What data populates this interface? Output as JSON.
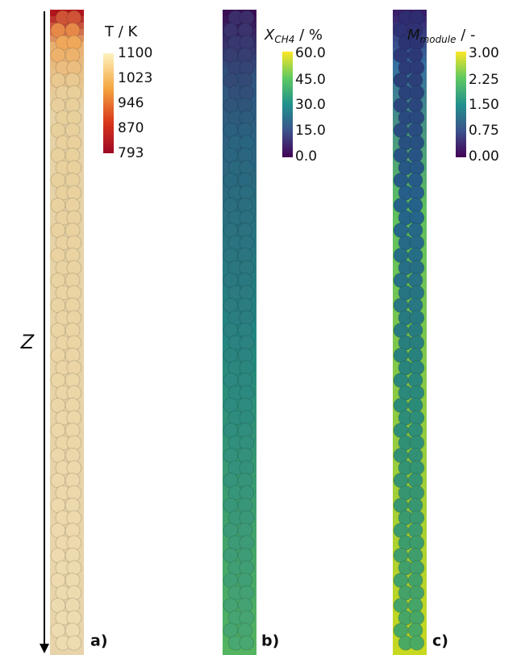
{
  "figure": {
    "axis_label": "Z",
    "panels": [
      {
        "label": "a)",
        "colorbar": {
          "title": "T / K",
          "ticks": [
            "1100",
            "1023",
            "946",
            "870",
            "793"
          ]
        }
      },
      {
        "label": "b)",
        "colorbar": {
          "symbol": "X",
          "subscript": "CH4",
          "unit": " / %",
          "ticks": [
            "60.0",
            "45.0",
            "30.0",
            "15.0",
            "0.0"
          ]
        }
      },
      {
        "label": "c)",
        "colorbar": {
          "symbol": "M",
          "subscript": "module",
          "unit": " / -",
          "ticks": [
            "3.00",
            "2.25",
            "1.50",
            "0.75",
            "0.00"
          ]
        }
      }
    ]
  }
}
